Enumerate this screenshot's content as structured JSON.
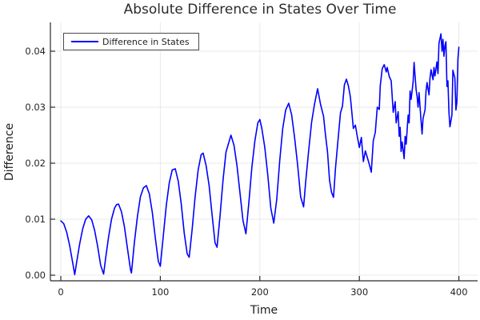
{
  "chart_data": {
    "type": "line",
    "title": "Absolute Difference in States Over Time",
    "xlabel": "Time",
    "ylabel": "Difference",
    "legend_entries": [
      "Difference in States"
    ],
    "legend_position": "top-left",
    "grid": true,
    "xlim": [
      -10,
      418
    ],
    "ylim": [
      -0.001,
      0.0452
    ],
    "xticks": [
      0,
      100,
      200,
      300,
      400
    ],
    "xtick_labels": [
      "0",
      "100",
      "200",
      "300",
      "400"
    ],
    "yticks": [
      0,
      0.01,
      0.02,
      0.03,
      0.04
    ],
    "ytick_labels": [
      "0.00",
      "0.01",
      "0.02",
      "0.03",
      "0.04"
    ],
    "colors": {
      "line": "#0000ff",
      "grid": "#e9e9e9",
      "axis": "#2a2a2a",
      "text": "#242424",
      "background": "#ffffff"
    },
    "series": [
      {
        "name": "Difference in States",
        "color": "#0000ff",
        "points": [
          [
            0,
            0.0097
          ],
          [
            3,
            0.0092
          ],
          [
            6,
            0.0076
          ],
          [
            9,
            0.0052
          ],
          [
            12,
            0.0022
          ],
          [
            14,
            0.0001
          ],
          [
            16,
            0.0024
          ],
          [
            19,
            0.0056
          ],
          [
            22,
            0.0083
          ],
          [
            25,
            0.01
          ],
          [
            28,
            0.0106
          ],
          [
            31,
            0.0099
          ],
          [
            34,
            0.008
          ],
          [
            37,
            0.0052
          ],
          [
            40,
            0.0018
          ],
          [
            43,
            0.0002
          ],
          [
            45,
            0.003
          ],
          [
            48,
            0.0068
          ],
          [
            51,
            0.01
          ],
          [
            54,
            0.012
          ],
          [
            56,
            0.0126
          ],
          [
            58,
            0.0127
          ],
          [
            61,
            0.0113
          ],
          [
            64,
            0.0086
          ],
          [
            67,
            0.0048
          ],
          [
            70,
            0.001
          ],
          [
            71,
            0.0004
          ],
          [
            74,
            0.006
          ],
          [
            77,
            0.0105
          ],
          [
            80,
            0.014
          ],
          [
            83,
            0.0156
          ],
          [
            86,
            0.016
          ],
          [
            89,
            0.0145
          ],
          [
            92,
            0.0112
          ],
          [
            95,
            0.0066
          ],
          [
            98,
            0.0025
          ],
          [
            100,
            0.0016
          ],
          [
            103,
            0.007
          ],
          [
            106,
            0.0125
          ],
          [
            109,
            0.0165
          ],
          [
            112,
            0.0188
          ],
          [
            115,
            0.019
          ],
          [
            118,
            0.0168
          ],
          [
            121,
            0.0128
          ],
          [
            124,
            0.0075
          ],
          [
            127,
            0.0038
          ],
          [
            129,
            0.0032
          ],
          [
            132,
            0.0082
          ],
          [
            135,
            0.014
          ],
          [
            138,
            0.0188
          ],
          [
            141,
            0.0215
          ],
          [
            143,
            0.0218
          ],
          [
            146,
            0.0196
          ],
          [
            149,
            0.016
          ],
          [
            152,
            0.0108
          ],
          [
            155,
            0.0058
          ],
          [
            157,
            0.005
          ],
          [
            160,
            0.0105
          ],
          [
            163,
            0.017
          ],
          [
            166,
            0.022
          ],
          [
            171,
            0.025
          ],
          [
            174,
            0.0232
          ],
          [
            177,
            0.0196
          ],
          [
            180,
            0.0148
          ],
          [
            183,
            0.0098
          ],
          [
            186,
            0.0074
          ],
          [
            189,
            0.013
          ],
          [
            192,
            0.0192
          ],
          [
            195,
            0.024
          ],
          [
            198,
            0.0272
          ],
          [
            200,
            0.0278
          ],
          [
            202,
            0.0262
          ],
          [
            205,
            0.0228
          ],
          [
            208,
            0.0178
          ],
          [
            211,
            0.012
          ],
          [
            214,
            0.0093
          ],
          [
            217,
            0.0135
          ],
          [
            220,
            0.0205
          ],
          [
            223,
            0.0262
          ],
          [
            226,
            0.0295
          ],
          [
            229,
            0.0307
          ],
          [
            232,
            0.0286
          ],
          [
            235,
            0.0245
          ],
          [
            238,
            0.0196
          ],
          [
            241,
            0.014
          ],
          [
            244,
            0.0122
          ],
          [
            246,
            0.0165
          ],
          [
            249,
            0.0222
          ],
          [
            252,
            0.0273
          ],
          [
            255,
            0.0306
          ],
          [
            258,
            0.0333
          ],
          [
            261,
            0.0305
          ],
          [
            264,
            0.0284
          ],
          [
            266,
            0.025
          ],
          [
            268,
            0.022
          ],
          [
            270,
            0.017
          ],
          [
            272,
            0.0148
          ],
          [
            274,
            0.0139
          ],
          [
            276,
            0.019
          ],
          [
            278,
            0.023
          ],
          [
            281,
            0.029
          ],
          [
            283,
            0.0302
          ],
          [
            285,
            0.034
          ],
          [
            287,
            0.035
          ],
          [
            289,
            0.0338
          ],
          [
            291,
            0.0318
          ],
          [
            292,
            0.03
          ],
          [
            294,
            0.0262
          ],
          [
            296,
            0.0268
          ],
          [
            298,
            0.0247
          ],
          [
            300,
            0.0228
          ],
          [
            302,
            0.0246
          ],
          [
            304,
            0.0203
          ],
          [
            306,
            0.0222
          ],
          [
            308,
            0.021
          ],
          [
            310,
            0.0198
          ],
          [
            312,
            0.0184
          ],
          [
            314,
            0.024
          ],
          [
            316,
            0.0255
          ],
          [
            318,
            0.03
          ],
          [
            320,
            0.0296
          ],
          [
            321,
            0.0338
          ],
          [
            323,
            0.0369
          ],
          [
            325,
            0.0376
          ],
          [
            327,
            0.0363
          ],
          [
            328,
            0.0371
          ],
          [
            330,
            0.0355
          ],
          [
            332,
            0.0347
          ],
          [
            334,
            0.0291
          ],
          [
            336,
            0.031
          ],
          [
            337,
            0.0272
          ],
          [
            339,
            0.0292
          ],
          [
            340,
            0.0248
          ],
          [
            341,
            0.0264
          ],
          [
            342,
            0.0221
          ],
          [
            343,
            0.0238
          ],
          [
            345,
            0.0208
          ],
          [
            346,
            0.0248
          ],
          [
            347,
            0.0234
          ],
          [
            349,
            0.0286
          ],
          [
            350,
            0.0272
          ],
          [
            351,
            0.0329
          ],
          [
            352,
            0.0314
          ],
          [
            354,
            0.0345
          ],
          [
            355,
            0.038
          ],
          [
            356,
            0.0355
          ],
          [
            357,
            0.0332
          ],
          [
            358,
            0.0319
          ],
          [
            359,
            0.03
          ],
          [
            360,
            0.0326
          ],
          [
            362,
            0.0276
          ],
          [
            363,
            0.0252
          ],
          [
            364,
            0.028
          ],
          [
            366,
            0.0295
          ],
          [
            367,
            0.0328
          ],
          [
            368,
            0.0344
          ],
          [
            370,
            0.0322
          ],
          [
            371,
            0.0352
          ],
          [
            372,
            0.0367
          ],
          [
            374,
            0.0349
          ],
          [
            375,
            0.0371
          ],
          [
            376,
            0.0356
          ],
          [
            378,
            0.0381
          ],
          [
            379,
            0.036
          ],
          [
            380,
            0.0414
          ],
          [
            382,
            0.0431
          ],
          [
            383,
            0.04
          ],
          [
            384,
            0.0421
          ],
          [
            385,
            0.0391
          ],
          [
            386,
            0.041
          ],
          [
            387,
            0.0417
          ],
          [
            388,
            0.0337
          ],
          [
            389,
            0.0347
          ],
          [
            390,
            0.0291
          ],
          [
            391,
            0.0265
          ],
          [
            393,
            0.0286
          ],
          [
            394,
            0.0366
          ],
          [
            396,
            0.0352
          ],
          [
            397,
            0.0295
          ],
          [
            398,
            0.0309
          ],
          [
            399,
            0.0386
          ],
          [
            400,
            0.0407
          ]
        ]
      }
    ]
  }
}
